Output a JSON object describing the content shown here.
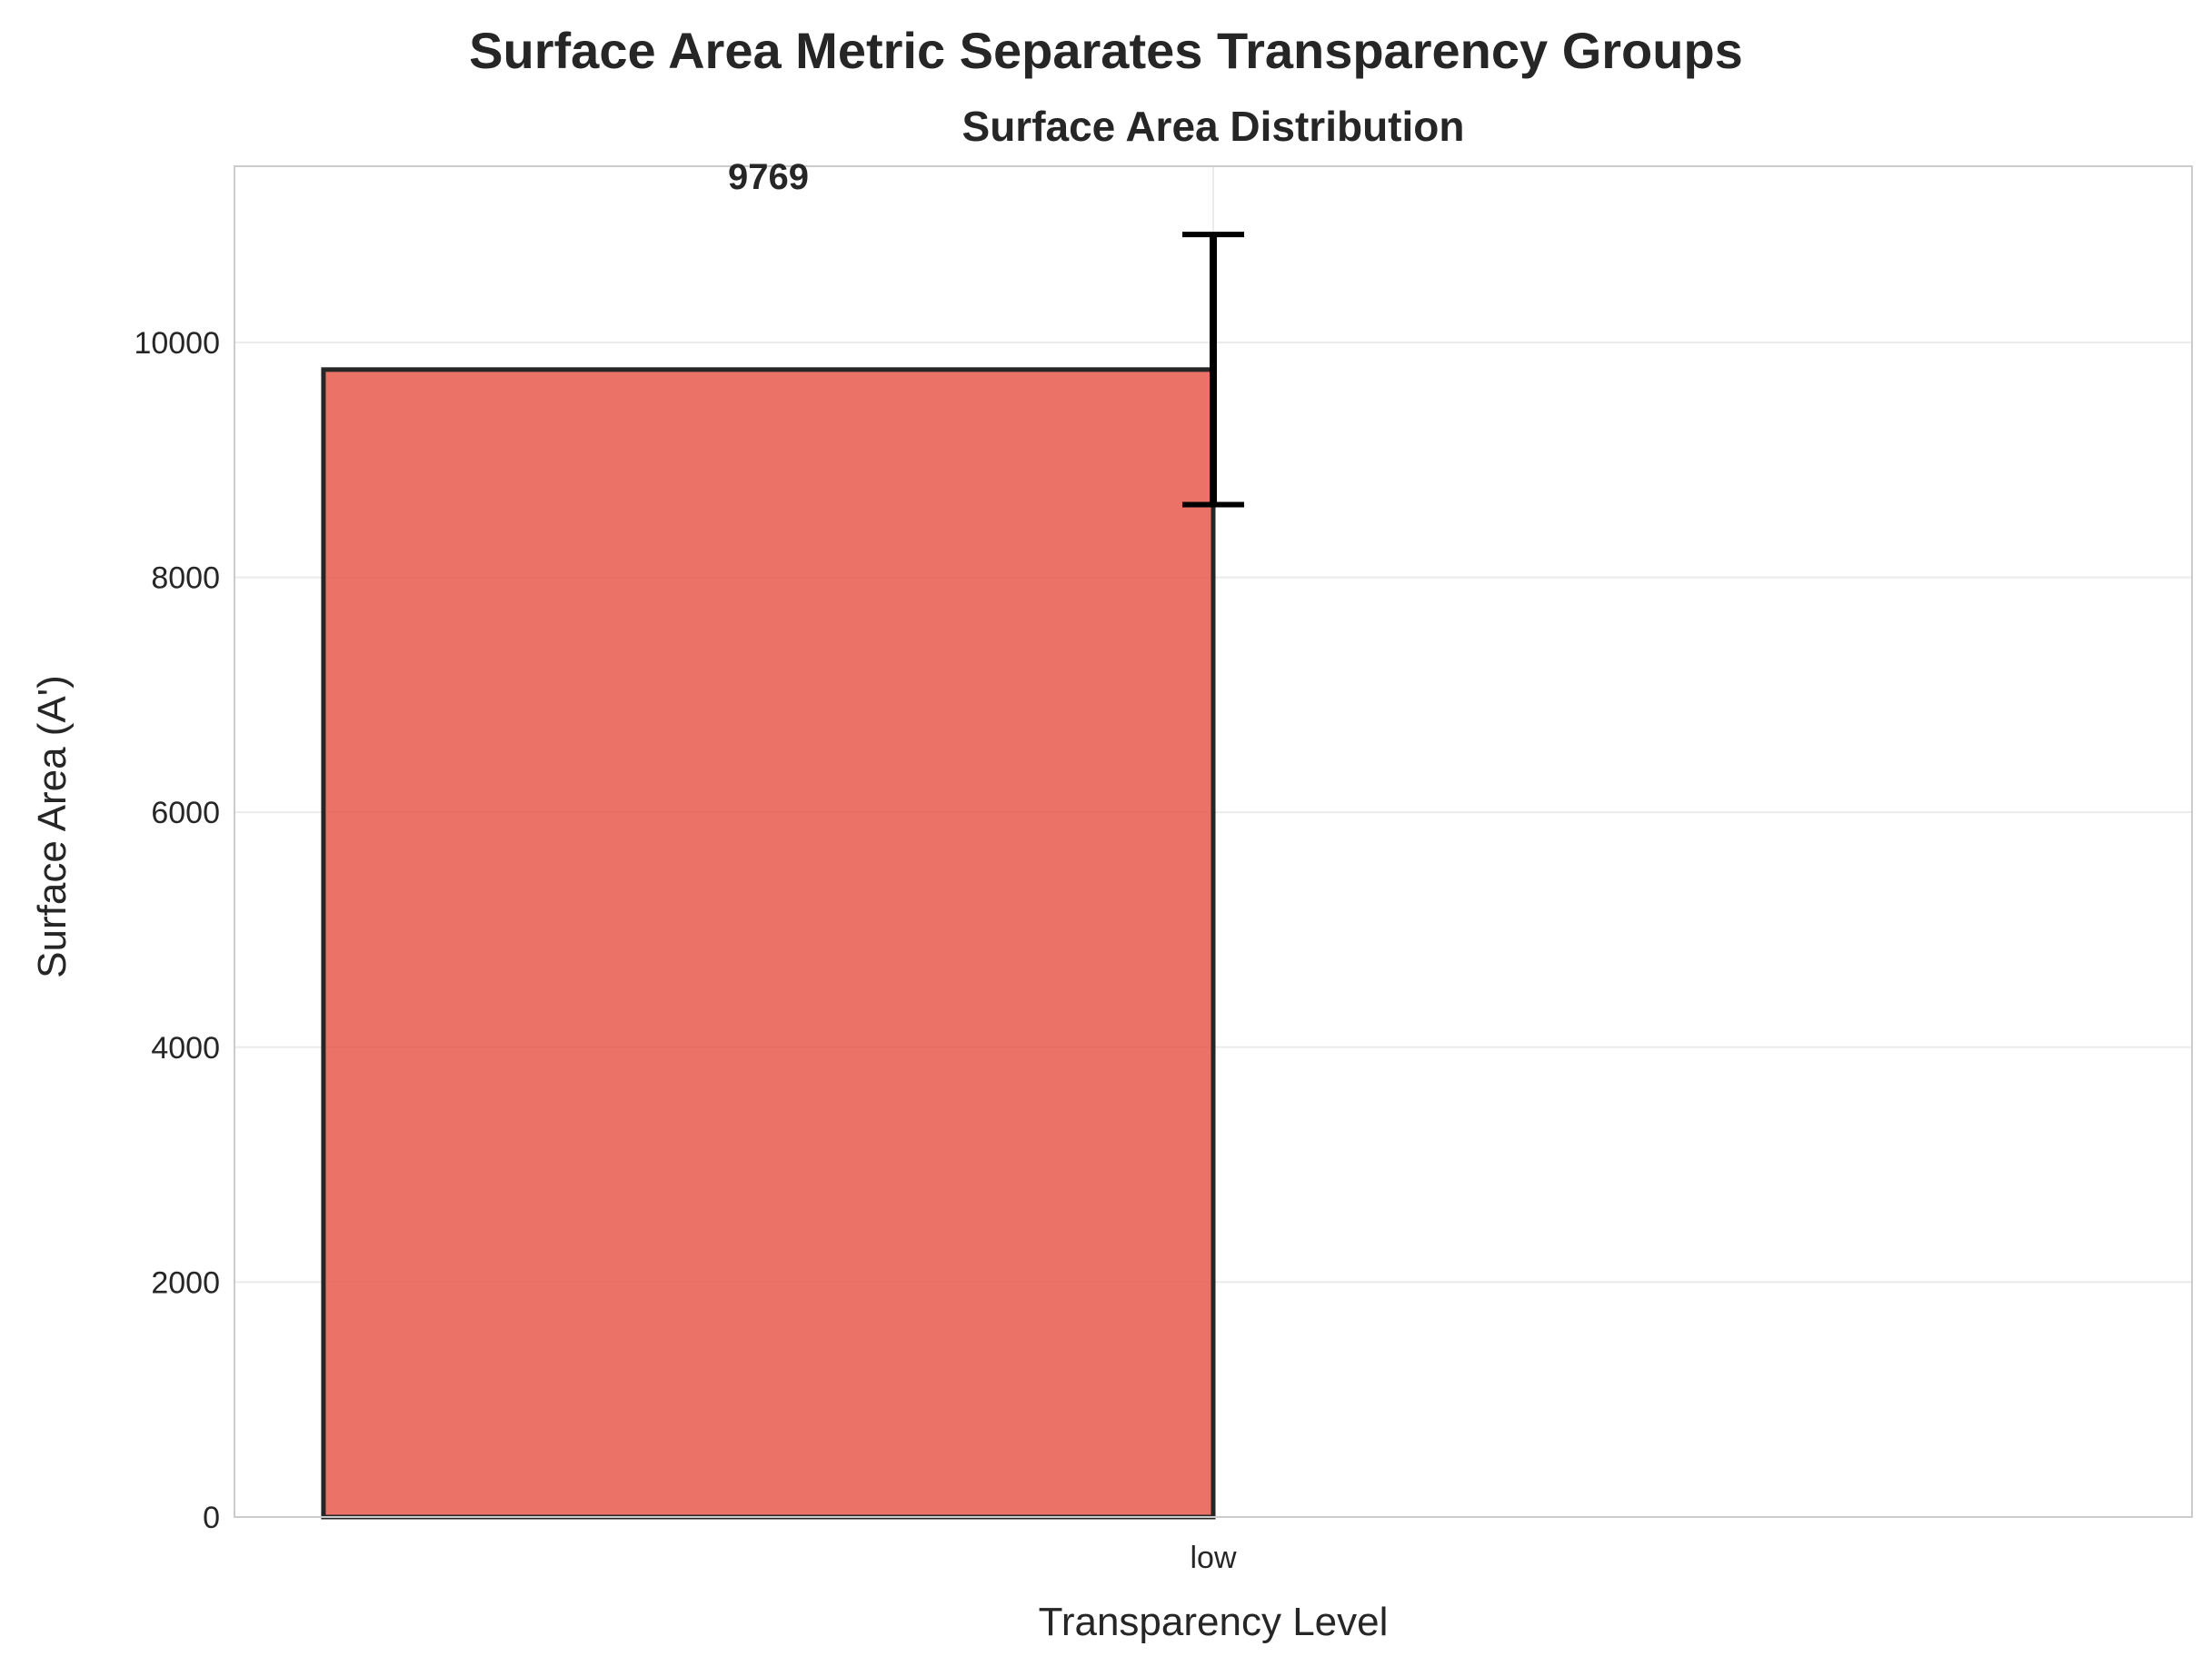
{
  "chart_data": {
    "type": "bar",
    "title": "Surface Area Metric Separates Transparency Groups",
    "subtitle": "Surface Area Distribution",
    "xlabel": "Transparency Level",
    "ylabel": "Surface Area (A')",
    "categories": [
      "low"
    ],
    "values": [
      9769
    ],
    "error": [
      1150
    ],
    "data_labels": [
      "9769"
    ],
    "ylim": [
      0,
      11500
    ],
    "yticks": [
      0,
      2000,
      4000,
      6000,
      8000,
      10000
    ],
    "ytick_labels": [
      "0",
      "2000",
      "4000",
      "6000",
      "8000",
      "10000"
    ],
    "grid": true,
    "bar_color": "#e8594c",
    "edge_color": "#262626",
    "grid_color": "#ebebeb",
    "frame_color": "#cccccc"
  }
}
